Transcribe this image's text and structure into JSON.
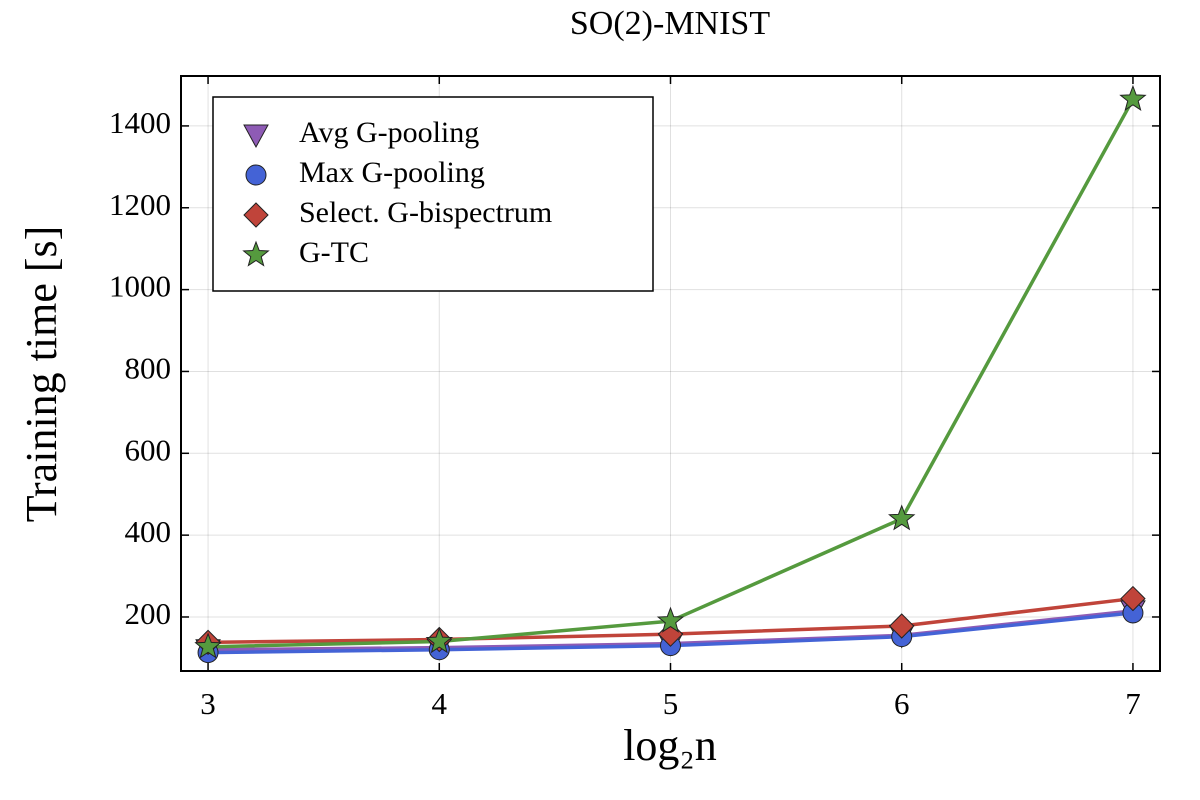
{
  "chart_data": {
    "type": "line",
    "title": "SO(2)-MNIST",
    "x_label": "log₂n",
    "y_label": "Training time [s]",
    "x": [
      3,
      4,
      5,
      6,
      7
    ],
    "series": [
      {
        "name": "Avg G-pooling",
        "color": "#8e5bb5",
        "marker": "triangle-down",
        "values": [
          120,
          125,
          135,
          155,
          215
        ]
      },
      {
        "name": "Max G-pooling",
        "color": "#4463d6",
        "marker": "circle",
        "values": [
          113,
          120,
          130,
          152,
          210
        ]
      },
      {
        "name": "Select. G-bispectrum",
        "color": "#c0443a",
        "marker": "diamond",
        "values": [
          138,
          145,
          158,
          178,
          245
        ]
      },
      {
        "name": "G-TC",
        "color": "#559a3e",
        "marker": "star",
        "values": [
          127,
          140,
          190,
          440,
          1465
        ]
      }
    ],
    "xlim": [
      2.883,
      7.117
    ],
    "xticks": [
      3,
      4,
      5,
      6,
      7
    ],
    "ylim": [
      68,
      1522
    ],
    "yticks": [
      200,
      400,
      600,
      800,
      1000,
      1200,
      1400
    ],
    "grid": true,
    "legend": "upper left"
  }
}
